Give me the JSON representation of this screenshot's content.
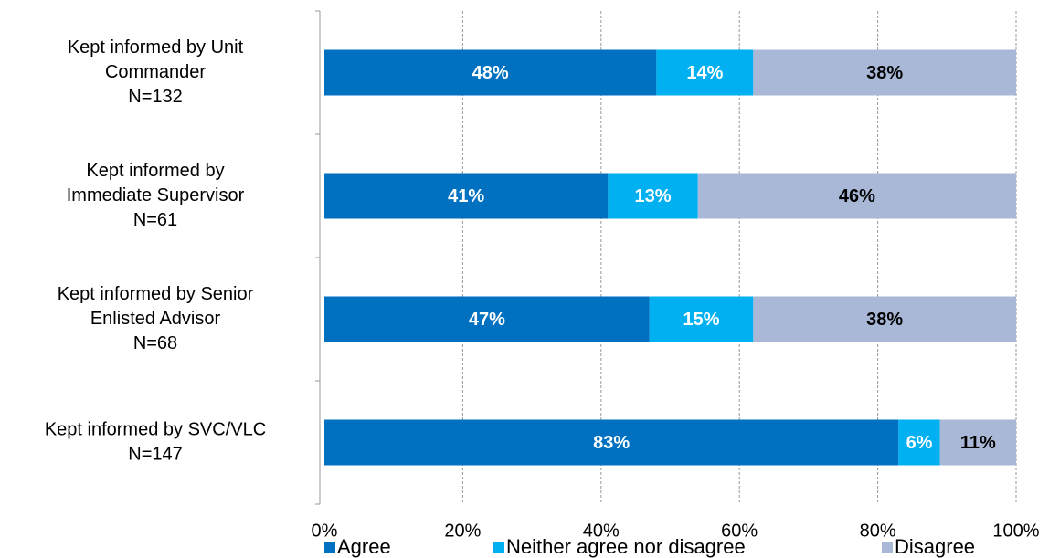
{
  "chart_data": {
    "type": "stacked_barh",
    "categories": [
      [
        "Kept informed by Unit",
        "Commander",
        "N=132"
      ],
      [
        "Kept informed by",
        "Immediate Supervisor",
        "N=61"
      ],
      [
        "Kept informed by Senior",
        "Enlisted Advisor",
        "N=68"
      ],
      [
        "Kept informed by SVC/VLC",
        "N=147"
      ]
    ],
    "series": [
      {
        "name": "Agree",
        "color": "#0070c0",
        "label_color": "#ffffff",
        "values": [
          48,
          41,
          47,
          83
        ],
        "value_labels": [
          "48%",
          "41%",
          "47%",
          "83%"
        ]
      },
      {
        "name": "Neither agree nor disagree",
        "color": "#00b0f0",
        "label_color": "#ffffff",
        "values": [
          14,
          13,
          15,
          6
        ],
        "value_labels": [
          "14%",
          "13%",
          "15%",
          "6%"
        ]
      },
      {
        "name": "Disagree",
        "color": "#a9b8d6",
        "label_color": "#000000",
        "values": [
          38,
          46,
          38,
          11
        ],
        "value_labels": [
          "38%",
          "46%",
          "38%",
          "11%"
        ]
      }
    ],
    "xlim": [
      0,
      100
    ],
    "xticks": [
      {
        "value": 0,
        "label": "0%"
      },
      {
        "value": 20,
        "label": "20%"
      },
      {
        "value": 40,
        "label": "40%"
      },
      {
        "value": 60,
        "label": "60%"
      },
      {
        "value": 80,
        "label": "80%"
      },
      {
        "value": 100,
        "label": "100%"
      }
    ],
    "grid": true,
    "legend": "bottom"
  }
}
